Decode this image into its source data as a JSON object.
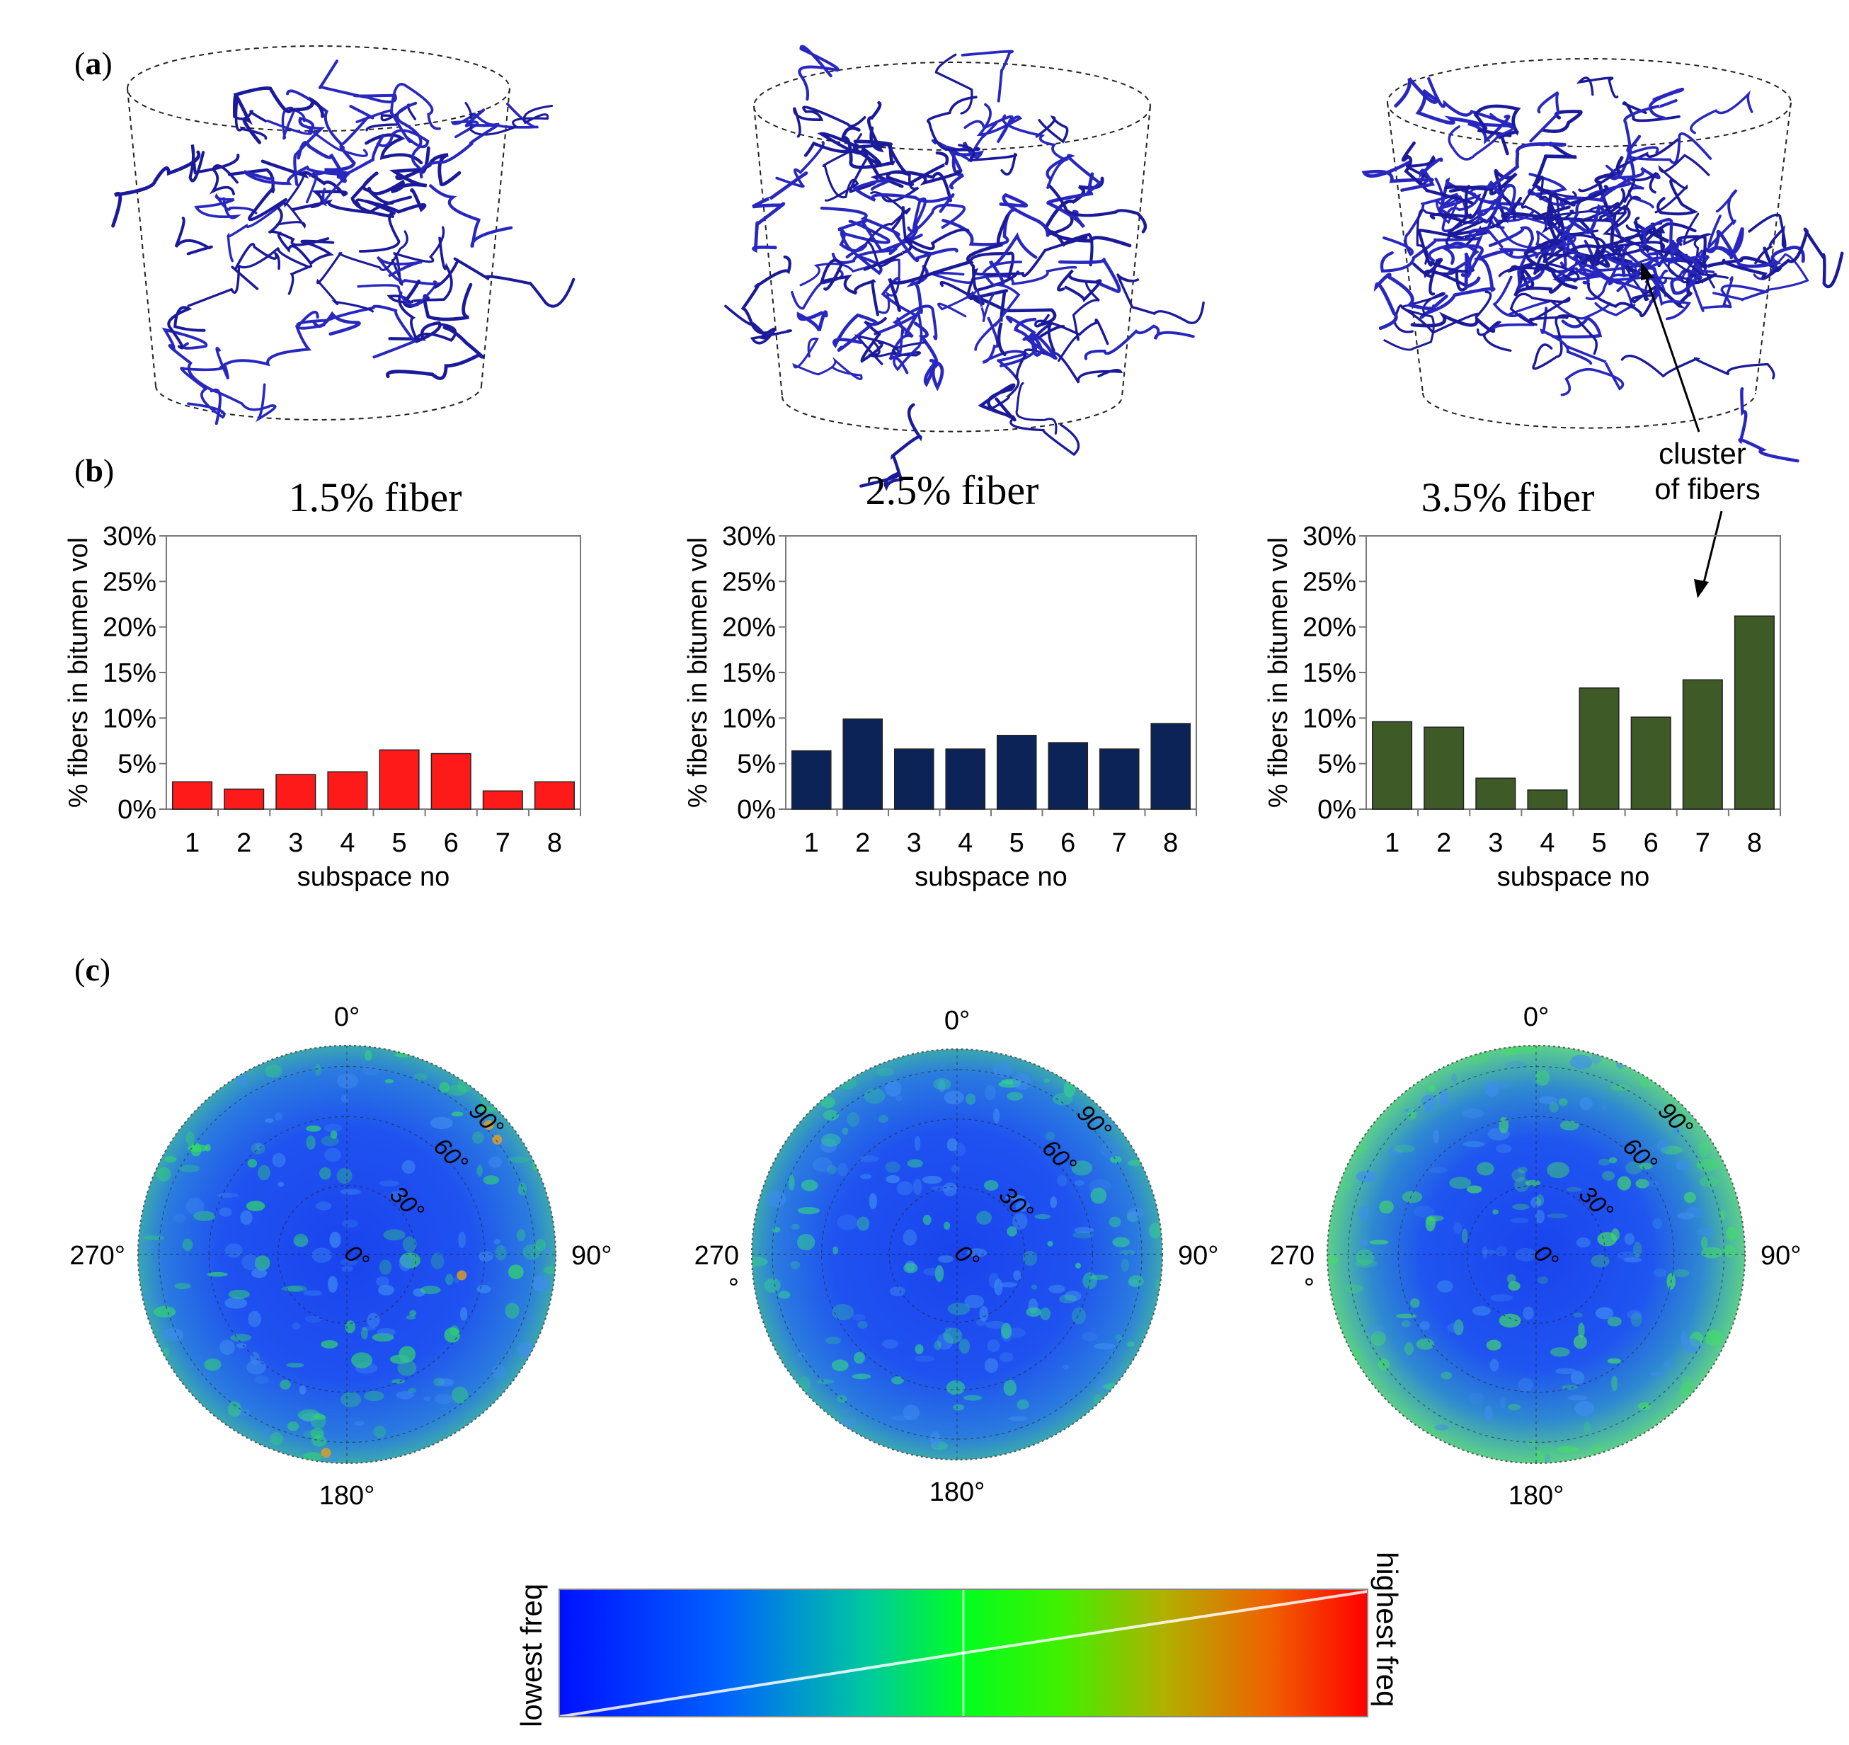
{
  "panel_labels": {
    "a": "a",
    "b": "b",
    "c": "c"
  },
  "annotation": {
    "line1": "cluster",
    "line2": "of fibers"
  },
  "chart_data": [
    {
      "type": "bar",
      "title": "1.5% fiber",
      "xlabel": "subspace no",
      "ylabel": "% fibers in bitumen vol",
      "categories": [
        "1",
        "2",
        "3",
        "4",
        "5",
        "6",
        "7",
        "8"
      ],
      "values": [
        3.0,
        2.2,
        3.8,
        4.1,
        6.5,
        6.1,
        2.0,
        3.0
      ],
      "ylim": [
        0,
        30
      ],
      "yticks": [
        "0%",
        "5%",
        "10%",
        "15%",
        "20%",
        "25%",
        "30%"
      ],
      "color": "#ff1a1a",
      "grid": false
    },
    {
      "type": "bar",
      "title": "2.5% fiber",
      "xlabel": "subspace no",
      "ylabel": "% fibers in bitumen vol",
      "categories": [
        "1",
        "2",
        "3",
        "4",
        "5",
        "6",
        "7",
        "8"
      ],
      "values": [
        6.4,
        9.9,
        6.6,
        6.6,
        8.1,
        7.3,
        6.6,
        9.4
      ],
      "ylim": [
        0,
        30
      ],
      "yticks": [
        "0%",
        "5%",
        "10%",
        "15%",
        "20%",
        "25%",
        "30%"
      ],
      "color": "#0c2358",
      "grid": false
    },
    {
      "type": "bar",
      "title": "3.5% fiber",
      "xlabel": "subspace no",
      "ylabel": "% fibers in bitumen vol",
      "categories": [
        "1",
        "2",
        "3",
        "4",
        "5",
        "6",
        "7",
        "8"
      ],
      "values": [
        9.6,
        9.0,
        3.4,
        2.1,
        13.3,
        10.1,
        14.2,
        21.2
      ],
      "ylim": [
        0,
        30
      ],
      "yticks": [
        "0%",
        "5%",
        "10%",
        "15%",
        "20%",
        "25%",
        "30%"
      ],
      "color": "#3d5a27",
      "grid": false
    }
  ],
  "polar_plots": [
    {
      "outer_labels": {
        "top": "0°",
        "right": "90°",
        "bottom": "180°",
        "left": "270°"
      },
      "inner_labels": [
        "0°",
        "30°",
        "60°",
        "90°"
      ],
      "base_color": "#1f5ff0",
      "hotspot_color": "#33dd66"
    },
    {
      "outer_labels": {
        "top": "0°",
        "right": "90°",
        "bottom": "180°",
        "left": "270\n°"
      },
      "inner_labels": [
        "0°",
        "30°",
        "60°",
        "90°"
      ],
      "base_color": "#2152f2",
      "hotspot_color": "#33d48a"
    },
    {
      "outer_labels": {
        "top": "0°",
        "right": "90°",
        "bottom": "180°",
        "left": "270\n°"
      },
      "inner_labels": [
        "0°",
        "30°",
        "60°",
        "90°"
      ],
      "base_color": "#1f55ee",
      "hotspot_color": "#44dd66"
    }
  ],
  "colorbar": {
    "low_label": "lowest freq",
    "high_label": "highest freq",
    "colors": [
      "#0000ff",
      "#0070ff",
      "#00e070",
      "#00ff00",
      "#80c000",
      "#ff0000"
    ]
  }
}
